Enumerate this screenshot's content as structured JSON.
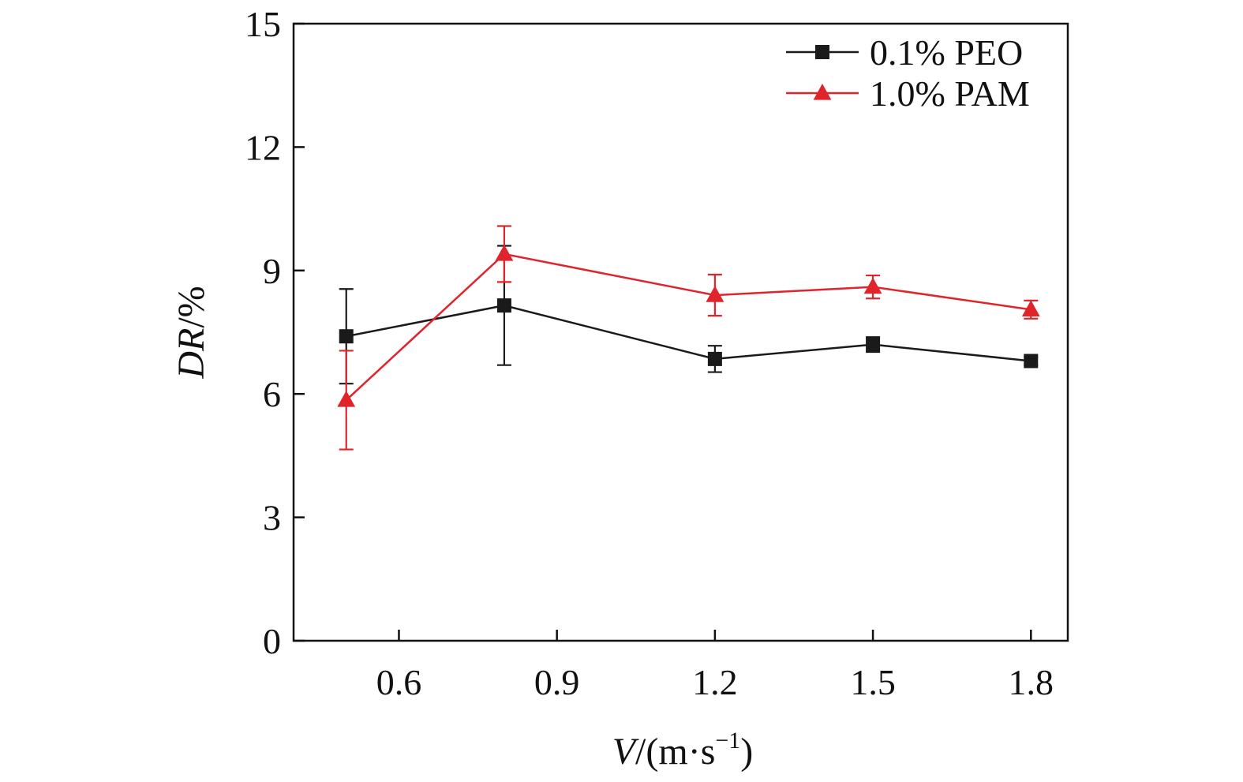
{
  "chart_data": {
    "type": "line",
    "title": "",
    "xlabel": {
      "var": "V",
      "unit_open": "/(m·s",
      "unit_exp": "−1",
      "unit_close": ")"
    },
    "ylabel": {
      "var": "DR",
      "unit": "/%"
    },
    "xlim": [
      0.4,
      1.87
    ],
    "ylim": [
      0,
      15
    ],
    "xticks": [
      "0.6",
      "0.9",
      "1.2",
      "1.5",
      "1.8"
    ],
    "xtick_values": [
      0.6,
      0.9,
      1.2,
      1.5,
      1.8
    ],
    "yticks": [
      "0",
      "3",
      "6",
      "9",
      "12",
      "15"
    ],
    "ytick_values": [
      0,
      3,
      6,
      9,
      12,
      15
    ],
    "grid": false,
    "legend_position": "top-right",
    "series": [
      {
        "name": "0.1% PEO",
        "color": "#1a1a1a",
        "marker": "square",
        "x": [
          0.5,
          0.8,
          1.2,
          1.5,
          1.8
        ],
        "y": [
          7.4,
          8.15,
          6.85,
          7.2,
          6.8
        ],
        "err": [
          1.15,
          1.45,
          0.32,
          0.18,
          0.1
        ]
      },
      {
        "name": "1.0% PAM",
        "color": "#e0242b",
        "marker": "triangle",
        "x": [
          0.5,
          0.8,
          1.2,
          1.5,
          1.8
        ],
        "y": [
          5.85,
          9.4,
          8.4,
          8.6,
          8.05
        ],
        "err": [
          1.2,
          0.68,
          0.5,
          0.28,
          0.22
        ]
      }
    ]
  }
}
